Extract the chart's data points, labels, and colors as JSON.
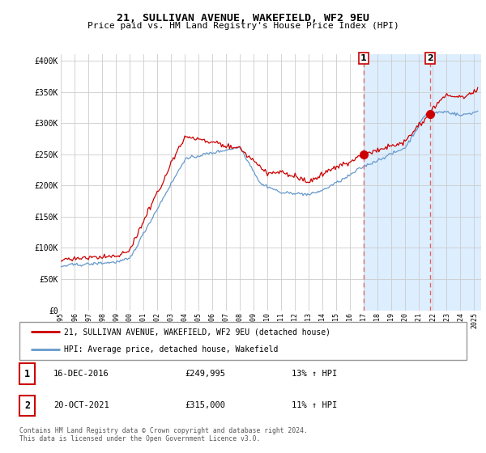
{
  "title1": "21, SULLIVAN AVENUE, WAKEFIELD, WF2 9EU",
  "title2": "Price paid vs. HM Land Registry's House Price Index (HPI)",
  "legend_label_red": "21, SULLIVAN AVENUE, WAKEFIELD, WF2 9EU (detached house)",
  "legend_label_blue": "HPI: Average price, detached house, Wakefield",
  "transaction1_date": "16-DEC-2016",
  "transaction1_price": "£249,995",
  "transaction1_hpi": "13% ↑ HPI",
  "transaction2_date": "20-OCT-2021",
  "transaction2_price": "£315,000",
  "transaction2_hpi": "11% ↑ HPI",
  "footnote": "Contains HM Land Registry data © Crown copyright and database right 2024.\nThis data is licensed under the Open Government Licence v3.0.",
  "vline1_x": 2016.96,
  "vline2_x": 2021.79,
  "marker1_y": 249995,
  "marker2_y": 315000,
  "ylim": [
    0,
    410000
  ],
  "xlim_start": 1995,
  "xlim_end": 2025.5,
  "yticks": [
    0,
    50000,
    100000,
    150000,
    200000,
    250000,
    300000,
    350000,
    400000
  ],
  "ytick_labels": [
    "£0",
    "£50K",
    "£100K",
    "£150K",
    "£200K",
    "£250K",
    "£300K",
    "£350K",
    "£400K"
  ],
  "xticks": [
    1995,
    1996,
    1997,
    1998,
    1999,
    2000,
    2001,
    2002,
    2003,
    2004,
    2005,
    2006,
    2007,
    2008,
    2009,
    2010,
    2011,
    2012,
    2013,
    2014,
    2015,
    2016,
    2017,
    2018,
    2019,
    2020,
    2021,
    2022,
    2023,
    2024,
    2025
  ],
  "red_color": "#cc0000",
  "blue_color": "#6699cc",
  "vline_color": "#dd6666",
  "shade_color": "#ddeeff",
  "grid_color": "#cccccc",
  "box_color": "#cc0000",
  "background_color": "#ffffff"
}
